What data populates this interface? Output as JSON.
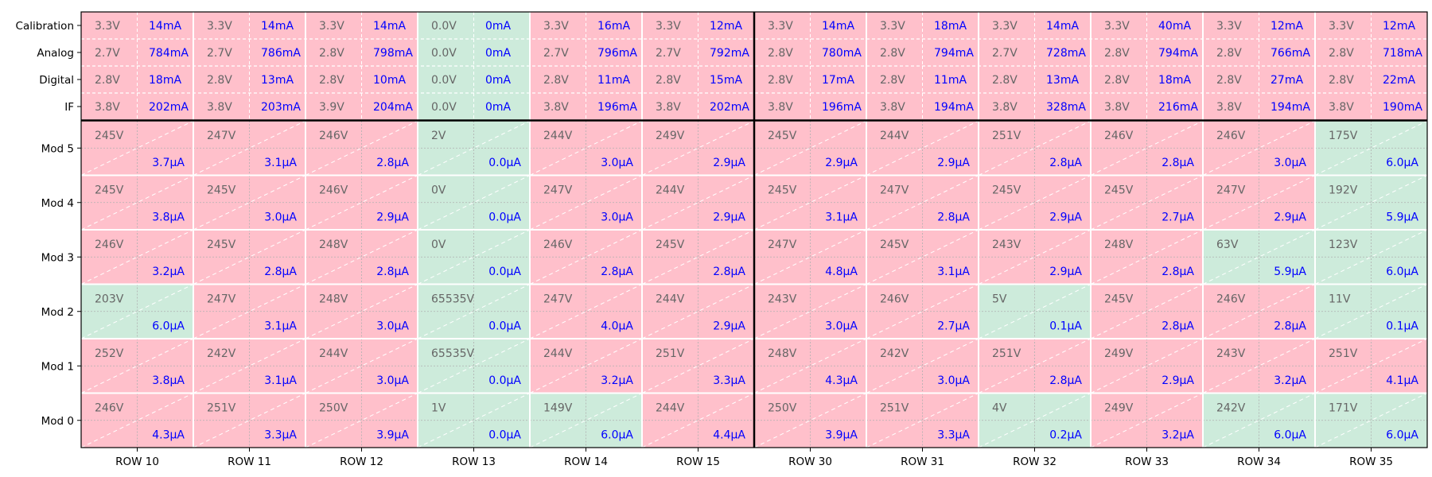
{
  "chart_data": {
    "type": "heatmap",
    "columns": [
      "ROW 10",
      "ROW 11",
      "ROW 12",
      "ROW 13",
      "ROW 14",
      "ROW 15",
      "ROW 30",
      "ROW 31",
      "ROW 32",
      "ROW 33",
      "ROW 34",
      "ROW 35"
    ],
    "lv_rows": [
      "Calibration",
      "Analog",
      "Digital",
      "IF"
    ],
    "hv_rows": [
      "Mod 5",
      "Mod 4",
      "Mod 3",
      "Mod 2",
      "Mod 1",
      "Mod 0"
    ],
    "lv": {
      "Calibration": [
        [
          "3.3V",
          "14mA"
        ],
        [
          "3.3V",
          "14mA"
        ],
        [
          "3.3V",
          "14mA"
        ],
        [
          "0.0V",
          "0mA"
        ],
        [
          "3.3V",
          "16mA"
        ],
        [
          "3.3V",
          "12mA"
        ],
        [
          "3.3V",
          "14mA"
        ],
        [
          "3.3V",
          "18mA"
        ],
        [
          "3.3V",
          "14mA"
        ],
        [
          "3.3V",
          "40mA"
        ],
        [
          "3.3V",
          "12mA"
        ],
        [
          "3.3V",
          "12mA"
        ]
      ],
      "Analog": [
        [
          "2.7V",
          "784mA"
        ],
        [
          "2.7V",
          "786mA"
        ],
        [
          "2.8V",
          "798mA"
        ],
        [
          "0.0V",
          "0mA"
        ],
        [
          "2.7V",
          "796mA"
        ],
        [
          "2.7V",
          "792mA"
        ],
        [
          "2.8V",
          "780mA"
        ],
        [
          "2.8V",
          "794mA"
        ],
        [
          "2.7V",
          "728mA"
        ],
        [
          "2.8V",
          "794mA"
        ],
        [
          "2.8V",
          "766mA"
        ],
        [
          "2.8V",
          "718mA"
        ]
      ],
      "Digital": [
        [
          "2.8V",
          "18mA"
        ],
        [
          "2.8V",
          "13mA"
        ],
        [
          "2.8V",
          "10mA"
        ],
        [
          "0.0V",
          "0mA"
        ],
        [
          "2.8V",
          "11mA"
        ],
        [
          "2.8V",
          "15mA"
        ],
        [
          "2.8V",
          "17mA"
        ],
        [
          "2.8V",
          "11mA"
        ],
        [
          "2.8V",
          "13mA"
        ],
        [
          "2.8V",
          "18mA"
        ],
        [
          "2.8V",
          "27mA"
        ],
        [
          "2.8V",
          "22mA"
        ]
      ],
      "IF": [
        [
          "3.8V",
          "202mA"
        ],
        [
          "3.8V",
          "203mA"
        ],
        [
          "3.9V",
          "204mA"
        ],
        [
          "0.0V",
          "0mA"
        ],
        [
          "3.8V",
          "196mA"
        ],
        [
          "3.8V",
          "202mA"
        ],
        [
          "3.8V",
          "196mA"
        ],
        [
          "3.8V",
          "194mA"
        ],
        [
          "3.8V",
          "328mA"
        ],
        [
          "3.8V",
          "216mA"
        ],
        [
          "3.8V",
          "194mA"
        ],
        [
          "3.8V",
          "190mA"
        ]
      ]
    },
    "lv_status": {
      "Calibration": [
        0,
        0,
        0,
        1,
        0,
        0,
        0,
        0,
        0,
        0,
        0,
        0
      ],
      "Analog": [
        0,
        0,
        0,
        1,
        0,
        0,
        0,
        0,
        0,
        0,
        0,
        0
      ],
      "Digital": [
        0,
        0,
        0,
        1,
        0,
        0,
        0,
        0,
        0,
        0,
        0,
        0
      ],
      "IF": [
        0,
        0,
        0,
        1,
        0,
        0,
        0,
        0,
        0,
        0,
        0,
        0
      ]
    },
    "hv": {
      "Mod 5": [
        [
          "245V",
          "3.7µA"
        ],
        [
          "247V",
          "3.1µA"
        ],
        [
          "246V",
          "2.8µA"
        ],
        [
          "2V",
          "0.0µA"
        ],
        [
          "244V",
          "3.0µA"
        ],
        [
          "249V",
          "2.9µA"
        ],
        [
          "245V",
          "2.9µA"
        ],
        [
          "244V",
          "2.9µA"
        ],
        [
          "251V",
          "2.8µA"
        ],
        [
          "246V",
          "2.8µA"
        ],
        [
          "246V",
          "3.0µA"
        ],
        [
          "175V",
          "6.0µA"
        ]
      ],
      "Mod 4": [
        [
          "245V",
          "3.8µA"
        ],
        [
          "245V",
          "3.0µA"
        ],
        [
          "246V",
          "2.9µA"
        ],
        [
          "0V",
          "0.0µA"
        ],
        [
          "247V",
          "3.0µA"
        ],
        [
          "244V",
          "2.9µA"
        ],
        [
          "245V",
          "3.1µA"
        ],
        [
          "247V",
          "2.8µA"
        ],
        [
          "245V",
          "2.9µA"
        ],
        [
          "245V",
          "2.7µA"
        ],
        [
          "247V",
          "2.9µA"
        ],
        [
          "192V",
          "5.9µA"
        ]
      ],
      "Mod 3": [
        [
          "246V",
          "3.2µA"
        ],
        [
          "245V",
          "2.8µA"
        ],
        [
          "248V",
          "2.8µA"
        ],
        [
          "0V",
          "0.0µA"
        ],
        [
          "246V",
          "2.8µA"
        ],
        [
          "245V",
          "2.8µA"
        ],
        [
          "247V",
          "4.8µA"
        ],
        [
          "245V",
          "3.1µA"
        ],
        [
          "243V",
          "2.9µA"
        ],
        [
          "248V",
          "2.8µA"
        ],
        [
          "63V",
          "5.9µA"
        ],
        [
          "123V",
          "6.0µA"
        ]
      ],
      "Mod 2": [
        [
          "203V",
          "6.0µA"
        ],
        [
          "247V",
          "3.1µA"
        ],
        [
          "248V",
          "3.0µA"
        ],
        [
          "65535V",
          "0.0µA"
        ],
        [
          "247V",
          "4.0µA"
        ],
        [
          "244V",
          "2.9µA"
        ],
        [
          "243V",
          "3.0µA"
        ],
        [
          "246V",
          "2.7µA"
        ],
        [
          "5V",
          "0.1µA"
        ],
        [
          "245V",
          "2.8µA"
        ],
        [
          "246V",
          "2.8µA"
        ],
        [
          "11V",
          "0.1µA"
        ]
      ],
      "Mod 1": [
        [
          "252V",
          "3.8µA"
        ],
        [
          "242V",
          "3.1µA"
        ],
        [
          "244V",
          "3.0µA"
        ],
        [
          "65535V",
          "0.0µA"
        ],
        [
          "244V",
          "3.2µA"
        ],
        [
          "251V",
          "3.3µA"
        ],
        [
          "248V",
          "4.3µA"
        ],
        [
          "242V",
          "3.0µA"
        ],
        [
          "251V",
          "2.8µA"
        ],
        [
          "249V",
          "2.9µA"
        ],
        [
          "243V",
          "3.2µA"
        ],
        [
          "251V",
          "4.1µA"
        ]
      ],
      "Mod 0": [
        [
          "246V",
          "4.3µA"
        ],
        [
          "251V",
          "3.3µA"
        ],
        [
          "250V",
          "3.9µA"
        ],
        [
          "1V",
          "0.0µA"
        ],
        [
          "149V",
          "6.0µA"
        ],
        [
          "244V",
          "4.4µA"
        ],
        [
          "250V",
          "3.9µA"
        ],
        [
          "251V",
          "3.3µA"
        ],
        [
          "4V",
          "0.2µA"
        ],
        [
          "249V",
          "3.2µA"
        ],
        [
          "242V",
          "6.0µA"
        ],
        [
          "171V",
          "6.0µA"
        ]
      ]
    },
    "hv_status": {
      "Mod 5": [
        0,
        0,
        0,
        1,
        0,
        0,
        0,
        0,
        0,
        0,
        0,
        1
      ],
      "Mod 4": [
        0,
        0,
        0,
        1,
        0,
        0,
        0,
        0,
        0,
        0,
        0,
        1
      ],
      "Mod 3": [
        0,
        0,
        0,
        1,
        0,
        0,
        0,
        0,
        0,
        0,
        1,
        1
      ],
      "Mod 2": [
        1,
        0,
        0,
        1,
        0,
        0,
        0,
        0,
        1,
        0,
        0,
        1
      ],
      "Mod 1": [
        0,
        0,
        0,
        1,
        0,
        0,
        0,
        0,
        0,
        0,
        0,
        0
      ],
      "Mod 0": [
        0,
        0,
        0,
        1,
        1,
        0,
        0,
        0,
        1,
        0,
        1,
        1
      ]
    },
    "colors": {
      "alarm": "#ffc0cb",
      "ok": "#cdebdb",
      "voltage_text": "#666666",
      "current_text": "#0000ff"
    }
  }
}
